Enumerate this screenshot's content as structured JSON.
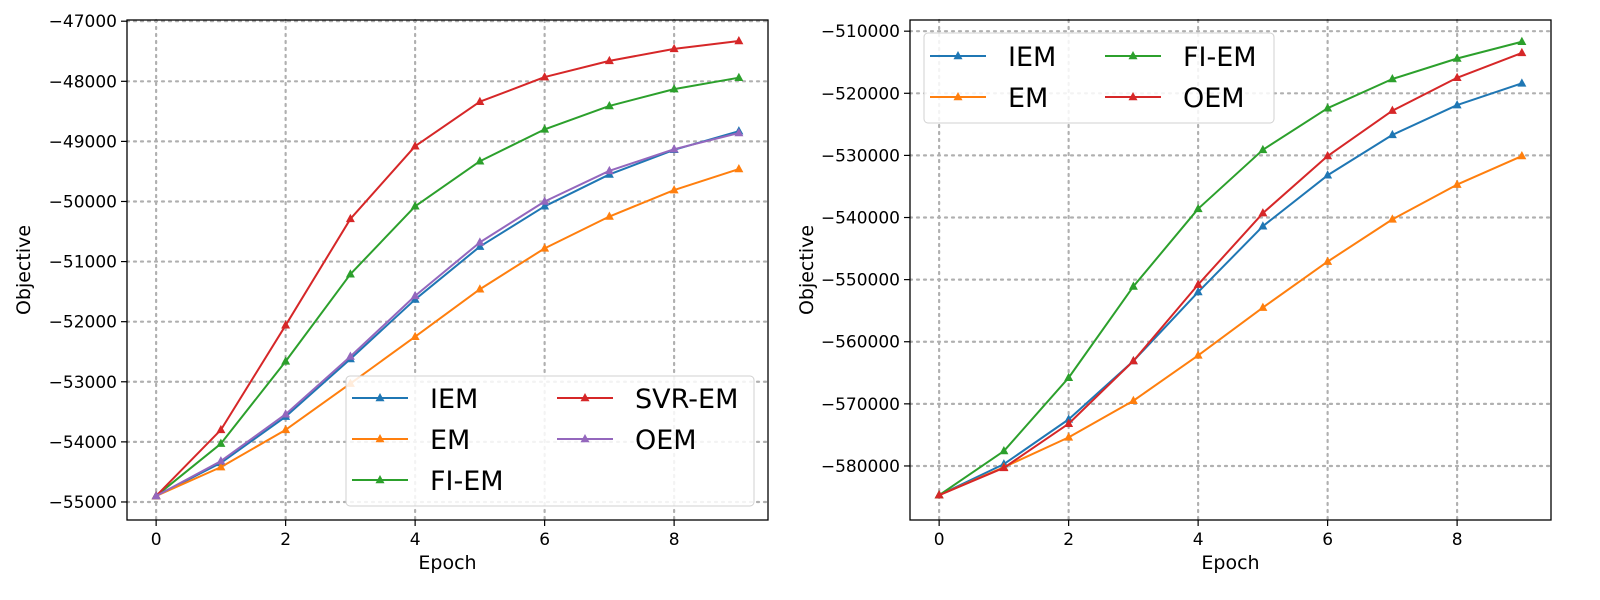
{
  "chart_data": [
    {
      "type": "line",
      "xlabel": "Epoch",
      "ylabel": "Objective",
      "x": [
        0,
        1,
        2,
        3,
        4,
        5,
        6,
        7,
        8,
        9
      ],
      "xlim": [
        -0.45,
        9.45
      ],
      "ylim": [
        -55300,
        -46980
      ],
      "xticks": [
        0,
        2,
        4,
        6,
        8
      ],
      "yticks": [
        -55000,
        -54000,
        -53000,
        -52000,
        -51000,
        -50000,
        -49000,
        -48000,
        -47000
      ],
      "xtick_labels": [
        "0",
        "2",
        "4",
        "6",
        "8"
      ],
      "ytick_labels": [
        "−55000",
        "−54000",
        "−53000",
        "−52000",
        "−51000",
        "−50000",
        "−49000",
        "−48000",
        "−47000"
      ],
      "grid": true,
      "marker": "triangle",
      "legend": {
        "placement": "lower-right",
        "columns": 2
      },
      "series": [
        {
          "name": "IEM",
          "color": "#1f77b4",
          "values": [
            -54900,
            -54350,
            -53580,
            -52620,
            -51630,
            -50750,
            -50080,
            -49550,
            -49140,
            -48830
          ]
        },
        {
          "name": "EM",
          "color": "#ff7f0e",
          "values": [
            -54900,
            -54420,
            -53800,
            -53030,
            -52250,
            -51460,
            -50780,
            -50250,
            -49810,
            -49460
          ]
        },
        {
          "name": "FI-EM",
          "color": "#2ca02c",
          "values": [
            -54900,
            -54030,
            -52660,
            -51210,
            -50080,
            -49330,
            -48800,
            -48410,
            -48130,
            -47940
          ]
        },
        {
          "name": "SVR-EM",
          "color": "#d62728",
          "values": [
            -54900,
            -53800,
            -52060,
            -50290,
            -49080,
            -48340,
            -47930,
            -47660,
            -47460,
            -47330
          ]
        },
        {
          "name": "OEM",
          "color": "#9467bd",
          "values": [
            -54900,
            -54320,
            -53540,
            -52580,
            -51570,
            -50680,
            -50000,
            -49490,
            -49130,
            -48860
          ]
        }
      ]
    },
    {
      "type": "line",
      "xlabel": "Epoch",
      "ylabel": "Objective",
      "x": [
        0,
        1,
        2,
        3,
        4,
        5,
        6,
        7,
        8,
        9
      ],
      "xlim": [
        -0.45,
        9.45
      ],
      "ylim": [
        -588700,
        -508200
      ],
      "xticks": [
        0,
        2,
        4,
        6,
        8
      ],
      "yticks": [
        -580000,
        -570000,
        -560000,
        -550000,
        -540000,
        -530000,
        -520000,
        -510000
      ],
      "xtick_labels": [
        "0",
        "2",
        "4",
        "6",
        "8"
      ],
      "ytick_labels": [
        "−580000",
        "−570000",
        "−560000",
        "−550000",
        "−540000",
        "−530000",
        "−520000",
        "−510000"
      ],
      "grid": true,
      "marker": "triangle",
      "legend": {
        "placement": "top-left",
        "columns": 2
      },
      "series": [
        {
          "name": "IEM",
          "color": "#1f77b4",
          "values": [
            -584700,
            -579700,
            -572500,
            -563100,
            -552000,
            -541400,
            -533200,
            -526700,
            -521900,
            -518400
          ]
        },
        {
          "name": "EM",
          "color": "#ff7f0e",
          "values": [
            -584700,
            -580200,
            -575400,
            -569500,
            -562200,
            -554500,
            -547100,
            -540300,
            -534700,
            -530100
          ]
        },
        {
          "name": "FI-EM",
          "color": "#2ca02c",
          "values": [
            -584700,
            -577600,
            -565800,
            -551100,
            -538600,
            -529100,
            -522400,
            -517700,
            -514400,
            -511700
          ]
        },
        {
          "name": "OEM",
          "color": "#d62728",
          "values": [
            -584700,
            -580300,
            -573200,
            -563100,
            -550800,
            -539300,
            -530100,
            -522800,
            -517500,
            -513500
          ]
        }
      ]
    }
  ]
}
